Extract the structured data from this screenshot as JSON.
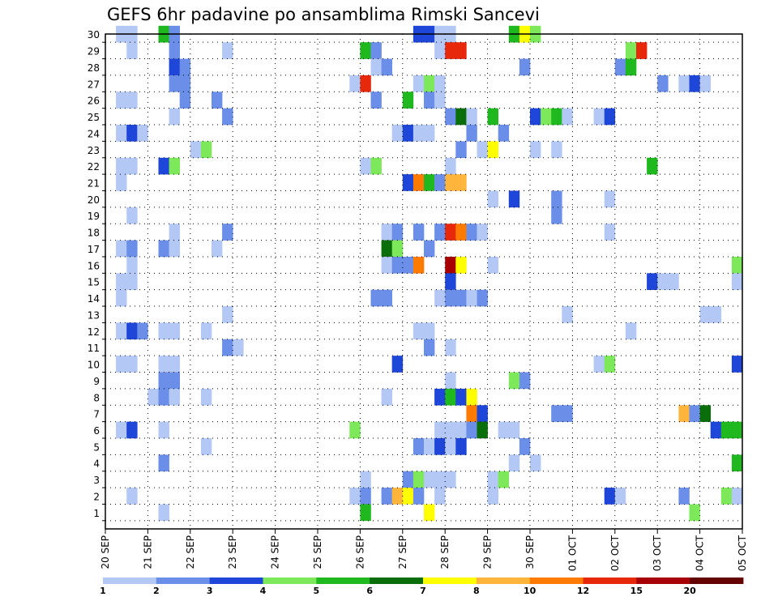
{
  "chart_data": {
    "type": "heatmap",
    "title": "GEFS 6hr padavine po ansamblima Rimski Sancevi",
    "xlabel": "",
    "ylabel": "",
    "x_tick_labels": [
      "20 SEP",
      "21 SEP",
      "22 SEP",
      "23 SEP",
      "24 SEP",
      "25 SEP",
      "26 SEP",
      "27 SEP",
      "28 SEP",
      "29 SEP",
      "30 SEP",
      "01 OCT",
      "02 OCT",
      "03 OCT",
      "04 OCT",
      "05 OCT"
    ],
    "y_tick_labels": [
      "1",
      "2",
      "3",
      "4",
      "5",
      "6",
      "7",
      "8",
      "9",
      "10",
      "11",
      "12",
      "13",
      "14",
      "15",
      "16",
      "17",
      "18",
      "19",
      "20",
      "21",
      "22",
      "23",
      "24",
      "25",
      "26",
      "27",
      "28",
      "29",
      "30"
    ],
    "xlim": [
      0,
      60
    ],
    "ylim": [
      0,
      30
    ],
    "grid": true,
    "legend": {
      "placement": "bottom",
      "labels": [
        "1",
        "2",
        "3",
        "4",
        "5",
        "6",
        "7",
        "8",
        "10",
        "12",
        "15",
        "20"
      ],
      "bins": [
        {
          "from": 1,
          "to": 2,
          "color": "#b4c8f5"
        },
        {
          "from": 2,
          "to": 3,
          "color": "#6b8fe8"
        },
        {
          "from": 3,
          "to": 4,
          "color": "#1e46d8"
        },
        {
          "from": 4,
          "to": 5,
          "color": "#7de85a"
        },
        {
          "from": 5,
          "to": 6,
          "color": "#1fb81f"
        },
        {
          "from": 6,
          "to": 7,
          "color": "#0a6e0a"
        },
        {
          "from": 7,
          "to": 8,
          "color": "#ffff00"
        },
        {
          "from": 8,
          "to": 10,
          "color": "#ffb43c"
        },
        {
          "from": 10,
          "to": 12,
          "color": "#ff7a00"
        },
        {
          "from": 12,
          "to": 15,
          "color": "#e8280a"
        },
        {
          "from": 15,
          "to": 20,
          "color": "#a80000"
        },
        {
          "from": 20,
          "to": 25,
          "color": "#640000"
        }
      ]
    },
    "cells": [
      [
        1,
        30,
        1
      ],
      [
        2,
        30,
        1
      ],
      [
        5,
        30,
        5
      ],
      [
        6,
        30,
        2
      ],
      [
        29,
        30,
        3
      ],
      [
        30,
        30,
        3
      ],
      [
        31,
        30,
        1
      ],
      [
        32,
        30,
        1
      ],
      [
        38,
        30,
        5
      ],
      [
        39,
        30,
        7
      ],
      [
        40,
        30,
        4
      ],
      [
        2,
        29,
        1
      ],
      [
        6,
        29,
        2
      ],
      [
        11,
        29,
        1
      ],
      [
        24,
        29,
        5
      ],
      [
        25,
        29,
        2
      ],
      [
        31,
        29,
        1
      ],
      [
        32,
        29,
        12
      ],
      [
        33,
        29,
        12
      ],
      [
        49,
        29,
        4
      ],
      [
        50,
        29,
        12
      ],
      [
        6,
        28,
        3
      ],
      [
        7,
        28,
        2
      ],
      [
        25,
        28,
        1
      ],
      [
        26,
        28,
        2
      ],
      [
        39,
        28,
        2
      ],
      [
        48,
        28,
        2
      ],
      [
        49,
        28,
        5
      ],
      [
        6,
        27,
        2
      ],
      [
        7,
        27,
        2
      ],
      [
        23,
        27,
        1
      ],
      [
        24,
        27,
        12
      ],
      [
        29,
        27,
        1
      ],
      [
        30,
        27,
        4
      ],
      [
        31,
        27,
        1
      ],
      [
        52,
        27,
        2
      ],
      [
        54,
        27,
        1
      ],
      [
        55,
        27,
        3
      ],
      [
        56,
        27,
        1
      ],
      [
        1,
        26,
        1
      ],
      [
        2,
        26,
        1
      ],
      [
        7,
        26,
        2
      ],
      [
        10,
        26,
        2
      ],
      [
        25,
        26,
        2
      ],
      [
        28,
        26,
        5
      ],
      [
        30,
        26,
        2
      ],
      [
        31,
        26,
        1
      ],
      [
        6,
        25,
        1
      ],
      [
        11,
        25,
        2
      ],
      [
        32,
        25,
        2
      ],
      [
        33,
        25,
        6
      ],
      [
        34,
        25,
        1
      ],
      [
        36,
        25,
        5
      ],
      [
        40,
        25,
        3
      ],
      [
        41,
        25,
        4
      ],
      [
        42,
        25,
        5
      ],
      [
        43,
        25,
        1
      ],
      [
        46,
        25,
        1
      ],
      [
        47,
        25,
        3
      ],
      [
        1,
        24,
        1
      ],
      [
        2,
        24,
        3
      ],
      [
        3,
        24,
        1
      ],
      [
        27,
        24,
        1
      ],
      [
        28,
        24,
        3
      ],
      [
        29,
        24,
        1
      ],
      [
        30,
        24,
        1
      ],
      [
        34,
        24,
        2
      ],
      [
        37,
        24,
        2
      ],
      [
        8,
        23,
        1
      ],
      [
        9,
        23,
        4
      ],
      [
        33,
        23,
        2
      ],
      [
        35,
        23,
        1
      ],
      [
        36,
        23,
        7
      ],
      [
        40,
        23,
        1
      ],
      [
        42,
        23,
        1
      ],
      [
        1,
        22,
        1
      ],
      [
        2,
        22,
        1
      ],
      [
        5,
        22,
        3
      ],
      [
        6,
        22,
        4
      ],
      [
        24,
        22,
        1
      ],
      [
        25,
        22,
        4
      ],
      [
        32,
        22,
        1
      ],
      [
        51,
        22,
        5
      ],
      [
        1,
        21,
        1
      ],
      [
        28,
        21,
        3
      ],
      [
        29,
        21,
        10
      ],
      [
        30,
        21,
        5
      ],
      [
        31,
        21,
        2
      ],
      [
        32,
        21,
        8
      ],
      [
        33,
        21,
        8
      ],
      [
        36,
        20,
        1
      ],
      [
        38,
        20,
        3
      ],
      [
        42,
        20,
        2
      ],
      [
        47,
        20,
        1
      ],
      [
        2,
        19,
        1
      ],
      [
        42,
        19,
        2
      ],
      [
        6,
        18,
        1
      ],
      [
        11,
        18,
        2
      ],
      [
        26,
        18,
        1
      ],
      [
        27,
        18,
        2
      ],
      [
        29,
        18,
        2
      ],
      [
        31,
        18,
        2
      ],
      [
        32,
        18,
        12
      ],
      [
        33,
        18,
        10
      ],
      [
        34,
        18,
        2
      ],
      [
        35,
        18,
        1
      ],
      [
        47,
        18,
        1
      ],
      [
        1,
        17,
        1
      ],
      [
        2,
        17,
        2
      ],
      [
        5,
        17,
        2
      ],
      [
        6,
        17,
        1
      ],
      [
        10,
        17,
        1
      ],
      [
        26,
        17,
        6
      ],
      [
        27,
        17,
        4
      ],
      [
        30,
        17,
        2
      ],
      [
        2,
        16,
        1
      ],
      [
        26,
        16,
        1
      ],
      [
        27,
        16,
        2
      ],
      [
        28,
        16,
        2
      ],
      [
        29,
        16,
        10
      ],
      [
        32,
        16,
        15
      ],
      [
        33,
        16,
        7
      ],
      [
        36,
        16,
        1
      ],
      [
        59,
        16,
        4
      ],
      [
        1,
        15,
        1
      ],
      [
        2,
        15,
        1
      ],
      [
        32,
        15,
        3
      ],
      [
        51,
        15,
        3
      ],
      [
        52,
        15,
        1
      ],
      [
        53,
        15,
        1
      ],
      [
        59,
        15,
        1
      ],
      [
        1,
        14,
        1
      ],
      [
        25,
        14,
        2
      ],
      [
        26,
        14,
        2
      ],
      [
        31,
        14,
        1
      ],
      [
        32,
        14,
        2
      ],
      [
        33,
        14,
        2
      ],
      [
        34,
        14,
        1
      ],
      [
        35,
        14,
        2
      ],
      [
        11,
        13,
        1
      ],
      [
        43,
        13,
        1
      ],
      [
        56,
        13,
        1
      ],
      [
        57,
        13,
        1
      ],
      [
        1,
        12,
        1
      ],
      [
        2,
        12,
        3
      ],
      [
        3,
        12,
        2
      ],
      [
        5,
        12,
        1
      ],
      [
        6,
        12,
        1
      ],
      [
        9,
        12,
        1
      ],
      [
        29,
        12,
        1
      ],
      [
        30,
        12,
        1
      ],
      [
        49,
        12,
        1
      ],
      [
        11,
        11,
        2
      ],
      [
        12,
        11,
        1
      ],
      [
        30,
        11,
        2
      ],
      [
        32,
        11,
        1
      ],
      [
        1,
        10,
        1
      ],
      [
        2,
        10,
        1
      ],
      [
        5,
        10,
        1
      ],
      [
        6,
        10,
        1
      ],
      [
        27,
        10,
        3
      ],
      [
        46,
        10,
        1
      ],
      [
        47,
        10,
        4
      ],
      [
        59,
        10,
        3
      ],
      [
        5,
        9,
        2
      ],
      [
        6,
        9,
        2
      ],
      [
        32,
        9,
        1
      ],
      [
        38,
        9,
        4
      ],
      [
        39,
        9,
        2
      ],
      [
        4,
        8,
        1
      ],
      [
        5,
        8,
        2
      ],
      [
        6,
        8,
        1
      ],
      [
        9,
        8,
        1
      ],
      [
        26,
        8,
        1
      ],
      [
        31,
        8,
        3
      ],
      [
        32,
        8,
        5
      ],
      [
        33,
        8,
        3
      ],
      [
        34,
        8,
        7
      ],
      [
        34,
        7,
        10
      ],
      [
        35,
        7,
        3
      ],
      [
        42,
        7,
        2
      ],
      [
        43,
        7,
        2
      ],
      [
        54,
        7,
        8
      ],
      [
        55,
        7,
        2
      ],
      [
        56,
        7,
        6
      ],
      [
        1,
        6,
        1
      ],
      [
        2,
        6,
        3
      ],
      [
        5,
        6,
        1
      ],
      [
        23,
        6,
        4
      ],
      [
        31,
        6,
        1
      ],
      [
        32,
        6,
        1
      ],
      [
        33,
        6,
        1
      ],
      [
        34,
        6,
        2
      ],
      [
        35,
        6,
        6
      ],
      [
        37,
        6,
        1
      ],
      [
        38,
        6,
        1
      ],
      [
        57,
        6,
        3
      ],
      [
        58,
        6,
        5
      ],
      [
        59,
        6,
        5
      ],
      [
        9,
        5,
        1
      ],
      [
        29,
        5,
        2
      ],
      [
        30,
        5,
        1
      ],
      [
        31,
        5,
        3
      ],
      [
        32,
        5,
        1
      ],
      [
        33,
        5,
        3
      ],
      [
        39,
        5,
        2
      ],
      [
        5,
        4,
        2
      ],
      [
        38,
        4,
        1
      ],
      [
        40,
        4,
        1
      ],
      [
        59,
        4,
        5
      ],
      [
        24,
        3,
        1
      ],
      [
        28,
        3,
        2
      ],
      [
        29,
        3,
        4
      ],
      [
        30,
        3,
        1
      ],
      [
        31,
        3,
        1
      ],
      [
        32,
        3,
        1
      ],
      [
        36,
        3,
        1
      ],
      [
        37,
        3,
        4
      ],
      [
        2,
        2,
        1
      ],
      [
        23,
        2,
        1
      ],
      [
        24,
        2,
        2
      ],
      [
        26,
        2,
        2
      ],
      [
        27,
        2,
        8
      ],
      [
        28,
        2,
        7
      ],
      [
        29,
        2,
        2
      ],
      [
        31,
        2,
        1
      ],
      [
        36,
        2,
        1
      ],
      [
        47,
        2,
        3
      ],
      [
        48,
        2,
        1
      ],
      [
        54,
        2,
        2
      ],
      [
        58,
        2,
        4
      ],
      [
        59,
        2,
        1
      ],
      [
        5,
        1,
        1
      ],
      [
        24,
        1,
        5
      ],
      [
        30,
        1,
        7
      ],
      [
        55,
        1,
        4
      ]
    ]
  }
}
